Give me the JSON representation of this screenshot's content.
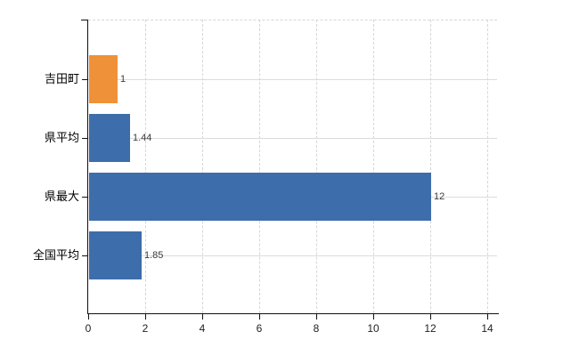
{
  "chart_data": {
    "type": "bar",
    "orientation": "horizontal",
    "title": "",
    "xlabel": "",
    "ylabel": "",
    "categories": [
      "吉田町",
      "県平均",
      "県最大",
      "全国平均"
    ],
    "values": [
      1,
      1.44,
      12,
      1.85
    ],
    "value_labels": [
      "1",
      "1.44",
      "12",
      "1.85"
    ],
    "bar_colors": [
      "#ef9138",
      "#3d6dab",
      "#3d6dab",
      "#3d6dab"
    ],
    "highlight_color": "#ef9138",
    "series_color": "#3d6dab",
    "x_ticks": [
      0,
      2,
      4,
      6,
      8,
      10,
      12,
      14
    ],
    "x_tick_labels": [
      "0",
      "2",
      "4",
      "6",
      "8",
      "10",
      "12",
      "14"
    ],
    "xlim": [
      0,
      14.35
    ],
    "grid": true,
    "legend": false,
    "background_color": "#ffffff",
    "gridline_color": "#d9d9d9"
  }
}
